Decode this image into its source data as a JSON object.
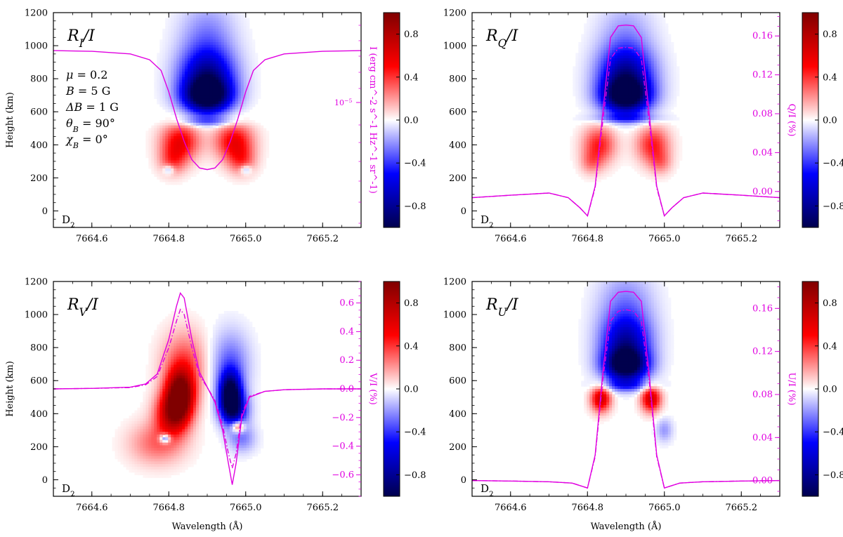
{
  "chart_data": [
    {
      "id": "RI",
      "type": "heatmap",
      "title": "R_I / I",
      "title_main": "R",
      "title_sub": "I",
      "title_tail": "/I",
      "xlabel": "",
      "ylabel": "Height (km)",
      "xlim": [
        7664.5,
        7665.3
      ],
      "ylim": [
        -100,
        1200
      ],
      "xticks": [
        7664.6,
        7664.8,
        7665.0,
        7665.2
      ],
      "xtick_labels": [
        "7664.6",
        "7664.8",
        "7665.0",
        "7665.2"
      ],
      "yticks": [
        0,
        200,
        400,
        600,
        800,
        1000,
        1200
      ],
      "ytick_labels": [
        "0",
        "200",
        "400",
        "600",
        "800",
        "1000",
        "1200"
      ],
      "corner_label": "D",
      "corner_label_sub": "2",
      "right_axis": {
        "label": "I (erg cm^-2 s^-1 Hz^-1 sr^-1)",
        "tick_label": "10^-5",
        "tick_label_base": "10",
        "tick_label_exp": "−5"
      },
      "params": [
        {
          "sym": "μ",
          "sub": "",
          "eq": " = 0.2"
        },
        {
          "sym": "B",
          "sub": "",
          "eq": " = 5 G"
        },
        {
          "sym": "ΔB",
          "sub": "",
          "eq": " = 1 G"
        },
        {
          "sym": "θ",
          "sub": "B",
          "eq": " = 90°"
        },
        {
          "sym": "χ",
          "sub": "B",
          "eq": " = 0°"
        }
      ],
      "heat_blobs": [
        {
          "x": 7664.9,
          "y": 690,
          "sx": 0.045,
          "sy": 75,
          "v": -1.0
        },
        {
          "x": 7664.9,
          "y": 820,
          "sx": 0.05,
          "sy": 110,
          "v": -0.7
        },
        {
          "x": 7664.9,
          "y": 1050,
          "sx": 0.05,
          "sy": 150,
          "v": -0.25
        },
        {
          "x": 7664.9,
          "y": 540,
          "sx": 0.06,
          "sy": 20,
          "v": -0.25
        },
        {
          "x": 7664.83,
          "y": 420,
          "sx": 0.035,
          "sy": 80,
          "v": 0.55
        },
        {
          "x": 7664.97,
          "y": 420,
          "sx": 0.035,
          "sy": 80,
          "v": 0.55
        },
        {
          "x": 7664.81,
          "y": 300,
          "sx": 0.025,
          "sy": 60,
          "v": 0.3
        },
        {
          "x": 7664.99,
          "y": 300,
          "sx": 0.025,
          "sy": 60,
          "v": 0.3
        },
        {
          "x": 7664.8,
          "y": 250,
          "sx": 0.01,
          "sy": 20,
          "v": -0.3
        },
        {
          "x": 7665.0,
          "y": 250,
          "sx": 0.01,
          "sy": 20,
          "v": -0.3
        }
      ],
      "curves": [
        {
          "style": "solid",
          "x": [
            7664.5,
            7664.6,
            7664.7,
            7664.75,
            7664.78,
            7664.8,
            7664.82,
            7664.84,
            7664.86,
            7664.88,
            7664.9,
            7664.92,
            7664.94,
            7664.96,
            7664.98,
            7665.0,
            7665.02,
            7665.05,
            7665.1,
            7665.2,
            7665.3
          ],
          "y": [
            970,
            966,
            950,
            915,
            850,
            720,
            560,
            420,
            310,
            260,
            250,
            260,
            310,
            420,
            560,
            720,
            850,
            915,
            950,
            966,
            970
          ]
        }
      ]
    },
    {
      "id": "RQ",
      "type": "heatmap",
      "title": "R_Q / I",
      "title_main": "R",
      "title_sub": "Q",
      "title_tail": "/I",
      "xlabel": "",
      "ylabel": "",
      "xlim": [
        7664.5,
        7665.3
      ],
      "ylim": [
        -100,
        1200
      ],
      "xticks": [
        7664.6,
        7664.8,
        7665.0,
        7665.2
      ],
      "xtick_labels": [
        "7664.6",
        "7664.8",
        "7665.0",
        "7665.2"
      ],
      "yticks": [
        0,
        200,
        400,
        600,
        800,
        1000,
        1200
      ],
      "ytick_labels": [
        "0",
        "200",
        "400",
        "600",
        "800",
        "1000",
        "1200"
      ],
      "corner_label": "D",
      "corner_label_sub": "2",
      "right_axis": {
        "label": "Q/I (%)",
        "ticks": [
          0.0,
          0.04,
          0.08,
          0.12,
          0.16
        ],
        "tick_labels": [
          "0.00",
          "0.04",
          "0.08",
          "0.12",
          "0.16"
        ],
        "map": [
          -0.02,
          0.0,
          0.184,
          1200
        ]
      },
      "heat_blobs": [
        {
          "x": 7664.9,
          "y": 690,
          "sx": 0.045,
          "sy": 75,
          "v": -1.0
        },
        {
          "x": 7664.9,
          "y": 830,
          "sx": 0.05,
          "sy": 110,
          "v": -0.7
        },
        {
          "x": 7664.9,
          "y": 1050,
          "sx": 0.05,
          "sy": 150,
          "v": -0.2
        },
        {
          "x": 7664.9,
          "y": 560,
          "sx": 0.06,
          "sy": 20,
          "v": -0.3
        },
        {
          "x": 7664.83,
          "y": 400,
          "sx": 0.03,
          "sy": 80,
          "v": 0.45
        },
        {
          "x": 7664.97,
          "y": 400,
          "sx": 0.03,
          "sy": 80,
          "v": 0.45
        },
        {
          "x": 7664.81,
          "y": 290,
          "sx": 0.02,
          "sy": 50,
          "v": 0.2
        },
        {
          "x": 7664.99,
          "y": 290,
          "sx": 0.02,
          "sy": 50,
          "v": 0.2
        }
      ],
      "curves": [
        {
          "style": "solid",
          "x": [
            7664.5,
            7664.6,
            7664.7,
            7664.75,
            7664.78,
            7664.8,
            7664.82,
            7664.84,
            7664.86,
            7664.88,
            7664.9,
            7664.92,
            7664.94,
            7664.96,
            7664.98,
            7665.0,
            7665.02,
            7665.05,
            7665.1,
            7665.2,
            7665.3
          ],
          "y": [
            80,
            95,
            108,
            80,
            20,
            -30,
            150,
            600,
            1050,
            1120,
            1125,
            1120,
            1050,
            600,
            150,
            -30,
            20,
            80,
            108,
            95,
            80
          ]
        },
        {
          "style": "dashdot",
          "x": [
            7664.5,
            7664.6,
            7664.7,
            7664.75,
            7664.78,
            7664.8,
            7664.82,
            7664.84,
            7664.86,
            7664.88,
            7664.9,
            7664.92,
            7664.94,
            7664.96,
            7664.98,
            7665.0,
            7665.02,
            7665.05,
            7665.1,
            7665.2,
            7665.3
          ],
          "y": [
            80,
            95,
            108,
            80,
            20,
            -30,
            140,
            550,
            920,
            985,
            990,
            985,
            920,
            550,
            140,
            -30,
            20,
            80,
            108,
            95,
            80
          ]
        }
      ]
    },
    {
      "id": "RV",
      "type": "heatmap",
      "title": "R_V / I",
      "title_main": "R",
      "title_sub": "V",
      "title_tail": "/I",
      "xlabel": "Wavelength (Å)",
      "ylabel": "Height (km)",
      "xlim": [
        7664.5,
        7665.3
      ],
      "ylim": [
        -100,
        1200
      ],
      "xticks": [
        7664.6,
        7664.8,
        7665.0,
        7665.2
      ],
      "xtick_labels": [
        "7664.6",
        "7664.8",
        "7665.0",
        "7665.2"
      ],
      "yticks": [
        0,
        200,
        400,
        600,
        800,
        1000,
        1200
      ],
      "ytick_labels": [
        "0",
        "200",
        "400",
        "600",
        "800",
        "1000",
        "1200"
      ],
      "corner_label": "D",
      "corner_label_sub": "2",
      "right_axis": {
        "label": "V/I (%)",
        "ticks": [
          -0.6,
          -0.4,
          -0.2,
          0.0,
          0.2,
          0.4,
          0.6
        ],
        "tick_labels": [
          "−0.6",
          "−0.4",
          "−0.2",
          "0.0",
          "0.2",
          "0.4",
          "0.6"
        ],
        "map": [
          0.0,
          550,
          0.6,
          1070
        ]
      },
      "heat_blobs": [
        {
          "x": 7664.83,
          "y": 520,
          "sx": 0.025,
          "sy": 100,
          "v": 1.0
        },
        {
          "x": 7664.81,
          "y": 400,
          "sx": 0.03,
          "sy": 90,
          "v": 0.75
        },
        {
          "x": 7664.84,
          "y": 700,
          "sx": 0.04,
          "sy": 140,
          "v": 0.35
        },
        {
          "x": 7664.77,
          "y": 220,
          "sx": 0.05,
          "sy": 90,
          "v": 0.3
        },
        {
          "x": 7664.79,
          "y": 250,
          "sx": 0.01,
          "sy": 20,
          "v": -0.6
        },
        {
          "x": 7664.96,
          "y": 520,
          "sx": 0.02,
          "sy": 90,
          "v": -1.0
        },
        {
          "x": 7664.97,
          "y": 420,
          "sx": 0.025,
          "sy": 70,
          "v": -0.6
        },
        {
          "x": 7664.96,
          "y": 700,
          "sx": 0.035,
          "sy": 140,
          "v": -0.3
        },
        {
          "x": 7664.99,
          "y": 250,
          "sx": 0.025,
          "sy": 60,
          "v": -0.25
        },
        {
          "x": 7664.98,
          "y": 320,
          "sx": 0.012,
          "sy": 25,
          "v": 0.55
        }
      ],
      "curves": [
        {
          "style": "solid",
          "x": [
            7664.5,
            7664.6,
            7664.7,
            7664.74,
            7664.77,
            7664.8,
            7664.82,
            7664.83,
            7664.84,
            7664.86,
            7664.88,
            7664.9,
            7664.92,
            7664.94,
            7664.955,
            7664.965,
            7664.975,
            7664.99,
            7665.01,
            7665.05,
            7665.1,
            7665.2,
            7665.3
          ],
          "y": [
            550,
            553,
            560,
            580,
            640,
            850,
            1050,
            1130,
            1100,
            850,
            650,
            560,
            470,
            300,
            100,
            -30,
            100,
            380,
            500,
            535,
            545,
            550,
            550
          ]
        },
        {
          "style": "dashdot",
          "x": [
            7664.5,
            7664.6,
            7664.7,
            7664.74,
            7664.77,
            7664.8,
            7664.82,
            7664.83,
            7664.84,
            7664.86,
            7664.88,
            7664.9,
            7664.92,
            7664.94,
            7664.955,
            7664.965,
            7664.975,
            7664.99,
            7665.01,
            7665.05,
            7665.1,
            7665.2,
            7665.3
          ],
          "y": [
            550,
            553,
            558,
            575,
            625,
            800,
            960,
            1030,
            1000,
            800,
            630,
            560,
            480,
            330,
            160,
            70,
            160,
            400,
            505,
            535,
            545,
            550,
            550
          ]
        }
      ]
    },
    {
      "id": "RU",
      "type": "heatmap",
      "title": "R_U / I",
      "title_main": "R",
      "title_sub": "U",
      "title_tail": "/I",
      "xlabel": "Wavelength (Å)",
      "ylabel": "",
      "xlim": [
        7664.5,
        7665.3
      ],
      "ylim": [
        -100,
        1200
      ],
      "xticks": [
        7664.6,
        7664.8,
        7665.0,
        7665.2
      ],
      "xtick_labels": [
        "7664.6",
        "7664.8",
        "7665.0",
        "7665.2"
      ],
      "yticks": [
        0,
        200,
        400,
        600,
        800,
        1000,
        1200
      ],
      "ytick_labels": [
        "0",
        "200",
        "400",
        "600",
        "800",
        "1000",
        "1200"
      ],
      "corner_label": "D",
      "corner_label_sub": "2",
      "right_axis": {
        "label": "U/I (%)",
        "ticks": [
          0.0,
          0.04,
          0.08,
          0.12,
          0.16
        ],
        "tick_labels": [
          "0.00",
          "0.04",
          "0.08",
          "0.12",
          "0.16"
        ],
        "map": [
          0.0,
          -5,
          0.185,
          1200
        ]
      },
      "heat_blobs": [
        {
          "x": 7664.9,
          "y": 690,
          "sx": 0.04,
          "sy": 70,
          "v": -1.0
        },
        {
          "x": 7664.9,
          "y": 830,
          "sx": 0.045,
          "sy": 110,
          "v": -0.65
        },
        {
          "x": 7664.9,
          "y": 1050,
          "sx": 0.05,
          "sy": 150,
          "v": -0.25
        },
        {
          "x": 7664.9,
          "y": 570,
          "sx": 0.05,
          "sy": 25,
          "v": -0.3
        },
        {
          "x": 7664.835,
          "y": 490,
          "sx": 0.018,
          "sy": 55,
          "v": 0.7
        },
        {
          "x": 7664.965,
          "y": 490,
          "sx": 0.018,
          "sy": 55,
          "v": 0.7
        },
        {
          "x": 7665.0,
          "y": 300,
          "sx": 0.015,
          "sy": 50,
          "v": -0.2
        }
      ],
      "curves": [
        {
          "style": "solid",
          "x": [
            7664.5,
            7664.6,
            7664.7,
            7664.76,
            7664.8,
            7664.82,
            7664.84,
            7664.86,
            7664.88,
            7664.9,
            7664.92,
            7664.94,
            7664.96,
            7664.98,
            7665.0,
            7665.04,
            7665.1,
            7665.2,
            7665.3
          ],
          "y": [
            -5,
            -8,
            -12,
            -20,
            -50,
            150,
            650,
            1080,
            1135,
            1140,
            1135,
            1080,
            650,
            150,
            -50,
            -20,
            -12,
            -8,
            -5
          ]
        },
        {
          "style": "dashdot",
          "x": [
            7664.5,
            7664.6,
            7664.7,
            7664.76,
            7664.8,
            7664.82,
            7664.84,
            7664.86,
            7664.88,
            7664.9,
            7664.92,
            7664.94,
            7664.96,
            7664.98,
            7665.0,
            7665.04,
            7665.1,
            7665.2,
            7665.3
          ],
          "y": [
            -5,
            -8,
            -12,
            -20,
            -50,
            140,
            610,
            960,
            1020,
            1030,
            1020,
            960,
            610,
            140,
            -50,
            -20,
            -12,
            -8,
            -5
          ]
        }
      ]
    }
  ],
  "colorbar": {
    "ticks": [
      0.8,
      0.4,
      0.0,
      -0.4,
      -0.8
    ],
    "tick_labels": [
      "0.8",
      "0.4",
      "0.0",
      "−0.4",
      "−0.8"
    ],
    "range": [
      -1.0,
      1.0
    ],
    "cmap": "seismic"
  },
  "colors": {
    "curve": "#e000e0",
    "axis": "#000000"
  }
}
